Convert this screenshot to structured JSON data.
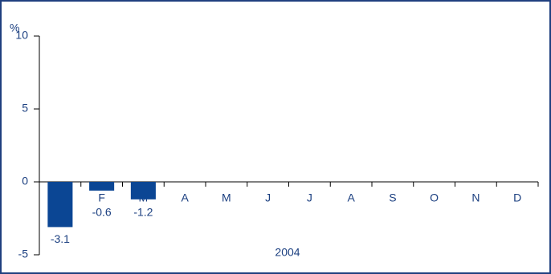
{
  "chart_data": {
    "type": "bar",
    "y_unit": "%",
    "x_label": "2004",
    "categories": [
      null,
      "F",
      "M",
      "A",
      "M",
      "J",
      "J",
      "A",
      "S",
      "O",
      "N",
      "D"
    ],
    "values": [
      -3.1,
      -0.6,
      -1.2,
      null,
      null,
      null,
      null,
      null,
      null,
      null,
      null,
      null
    ],
    "color": "#0b4694",
    "ylim": [
      -5,
      10
    ],
    "yticks": [
      -5,
      0,
      5,
      10
    ],
    "grid": false
  }
}
